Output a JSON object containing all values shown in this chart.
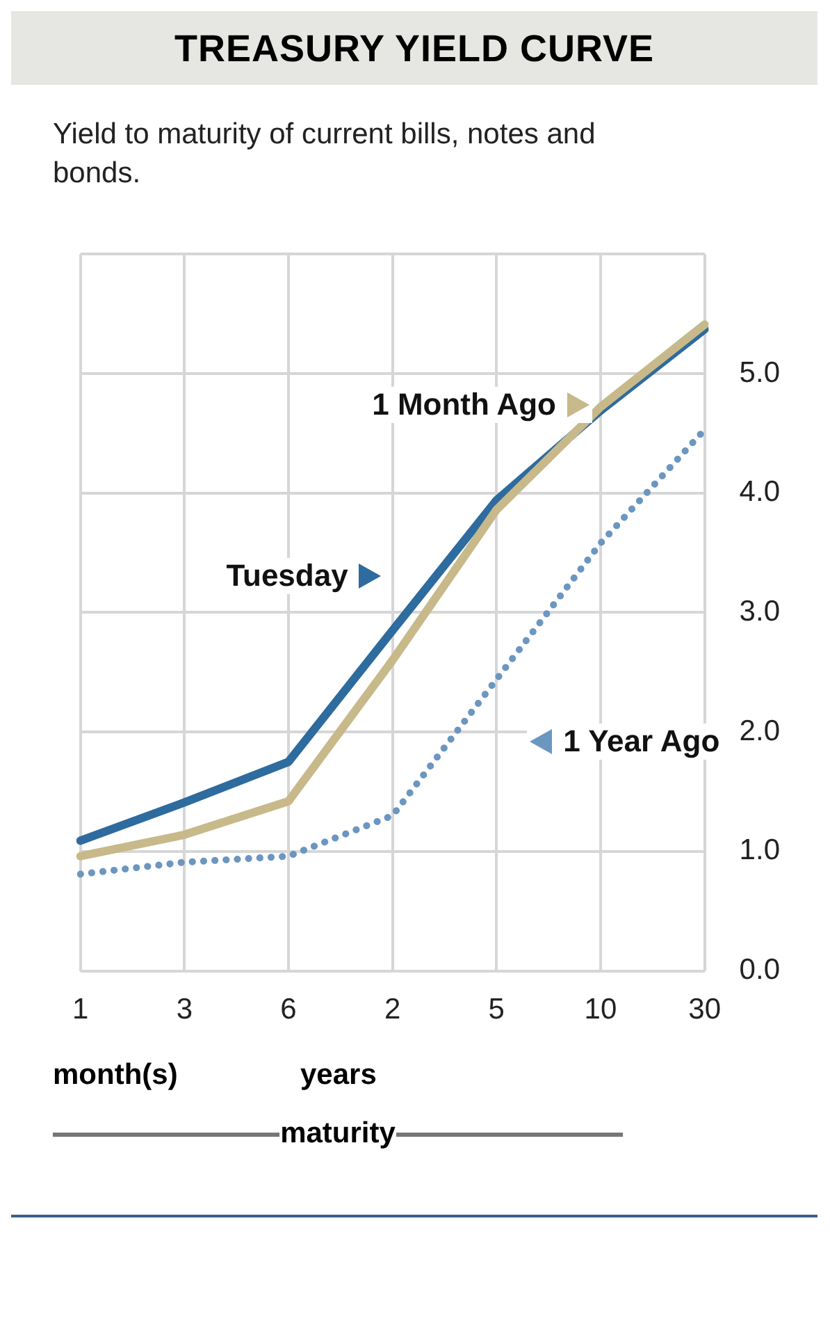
{
  "chart_data": {
    "type": "line",
    "title": "TREASURY YIELD CURVE",
    "subtitle": "Yield to maturity of current bills, notes and bonds.",
    "xlabel": "maturity",
    "annotations": [
      "month(s)",
      "years"
    ],
    "categories": [
      "1",
      "3",
      "6",
      "2",
      "5",
      "10",
      "30"
    ],
    "series": [
      {
        "name": "Tuesday",
        "color": "#2e6b9e",
        "values": [
          1.09,
          1.41,
          1.75,
          2.85,
          3.94,
          4.69,
          5.37
        ]
      },
      {
        "name": "1 Month Ago",
        "color": "#c8b98a",
        "values": [
          0.96,
          1.14,
          1.42,
          2.6,
          3.86,
          4.72,
          5.41
        ]
      },
      {
        "name": "1 Year Ago",
        "color": "#6b96c0",
        "line_style": "dotted",
        "values": [
          0.81,
          0.91,
          0.96,
          1.3,
          2.44,
          3.58,
          4.53
        ]
      }
    ],
    "ylim": [
      0,
      6
    ],
    "yticks": [
      {
        "value": 0,
        "label": "0.0"
      },
      {
        "value": 1,
        "label": "1.0"
      },
      {
        "value": 2,
        "label": "2.0"
      },
      {
        "value": 3,
        "label": "3.0"
      },
      {
        "value": 4,
        "label": "4.0"
      },
      {
        "value": 5,
        "label": "5.0"
      },
      {
        "value": 6,
        "label": null
      }
    ],
    "grid": true,
    "legend": "left",
    "marker": "none",
    "line_style": "solid"
  }
}
